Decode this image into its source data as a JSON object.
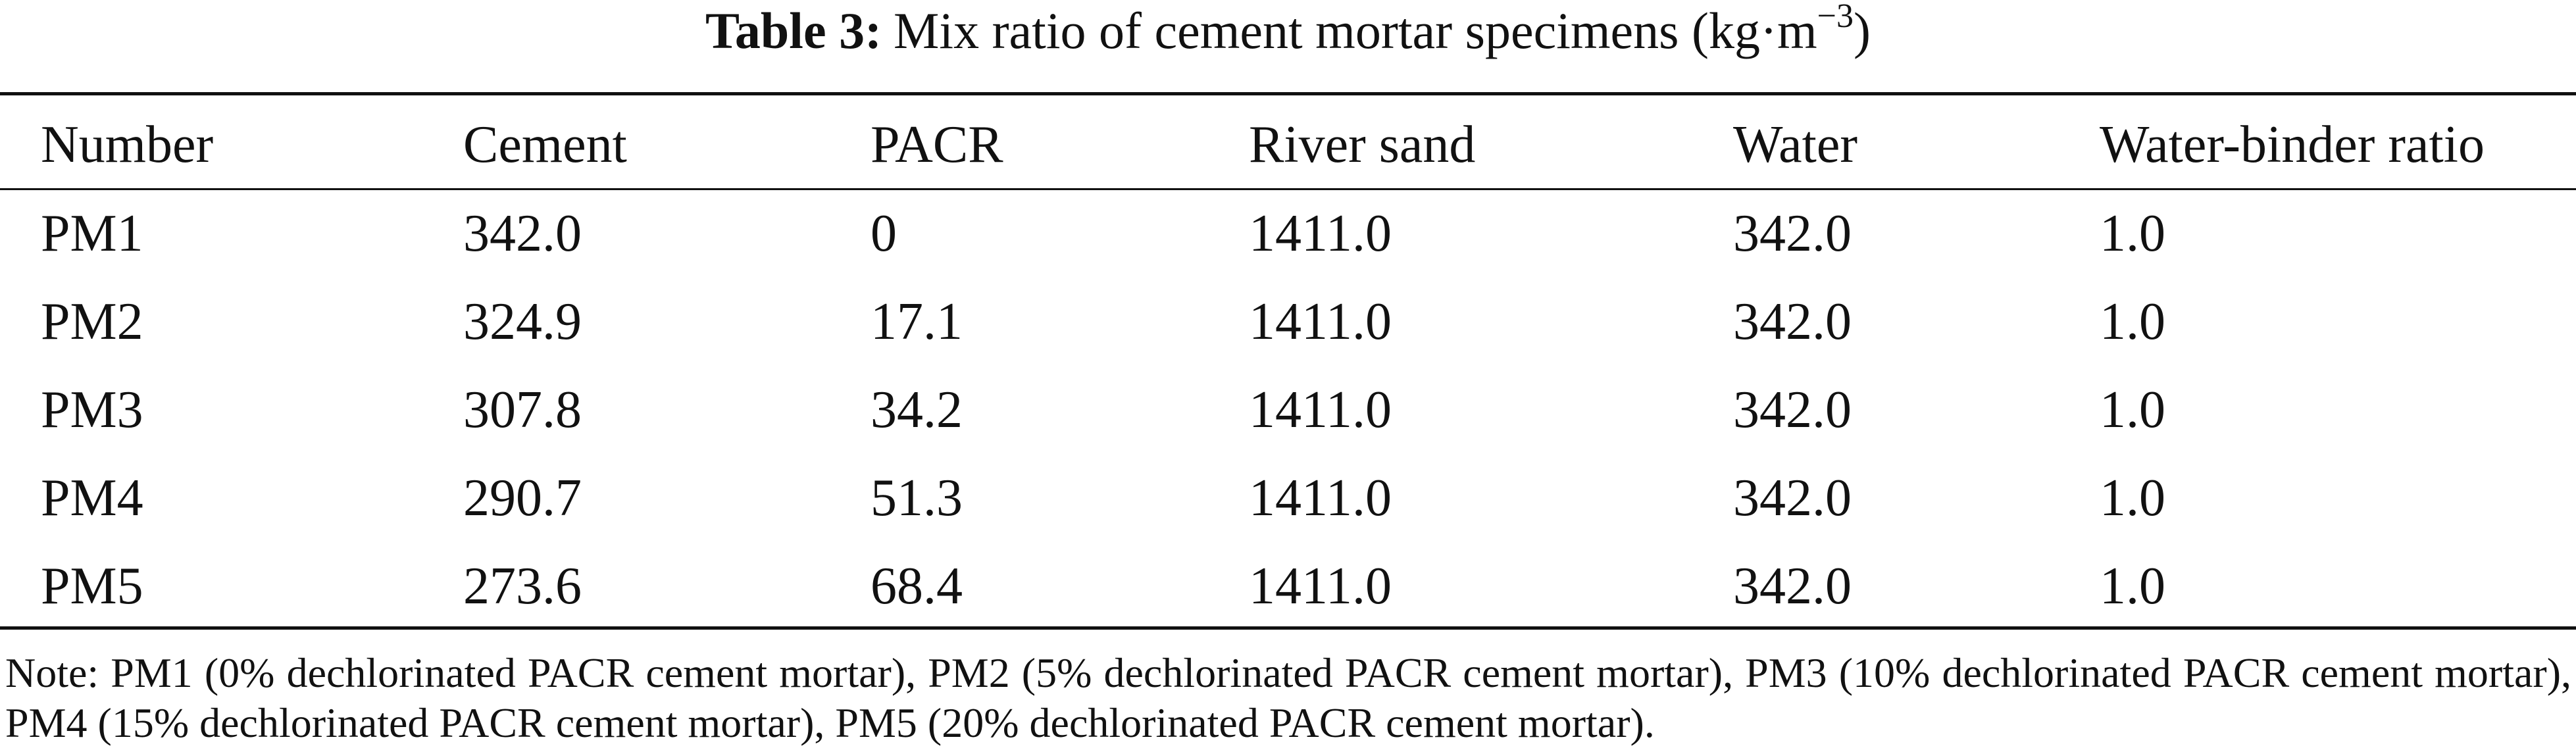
{
  "title": {
    "label": "Table 3:",
    "text": "Mix ratio of cement mortar specimens (kg·m",
    "sup": "−3",
    "end": ")"
  },
  "table": {
    "columns": [
      "Number",
      "Cement",
      "PACR",
      "River sand",
      "Water",
      "Water-binder ratio"
    ],
    "rows": [
      [
        "PM1",
        "342.0",
        "0",
        "1411.0",
        "342.0",
        "1.0"
      ],
      [
        "PM2",
        "324.9",
        "17.1",
        "1411.0",
        "342.0",
        "1.0"
      ],
      [
        "PM3",
        "307.8",
        "34.2",
        "1411.0",
        "342.0",
        "1.0"
      ],
      [
        "PM4",
        "290.7",
        "51.3",
        "1411.0",
        "342.0",
        "1.0"
      ],
      [
        "PM5",
        "273.6",
        "68.4",
        "1411.0",
        "342.0",
        "1.0"
      ]
    ]
  },
  "note": "Note: PM1 (0% dechlorinated PACR cement mortar), PM2 (5% dechlorinated PACR cement mortar), PM3 (10% dechlorinated PACR cement mortar), PM4 (15% dechlorinated PACR cement mortar), PM5 (20% dechlorinated PACR cement mortar)."
}
